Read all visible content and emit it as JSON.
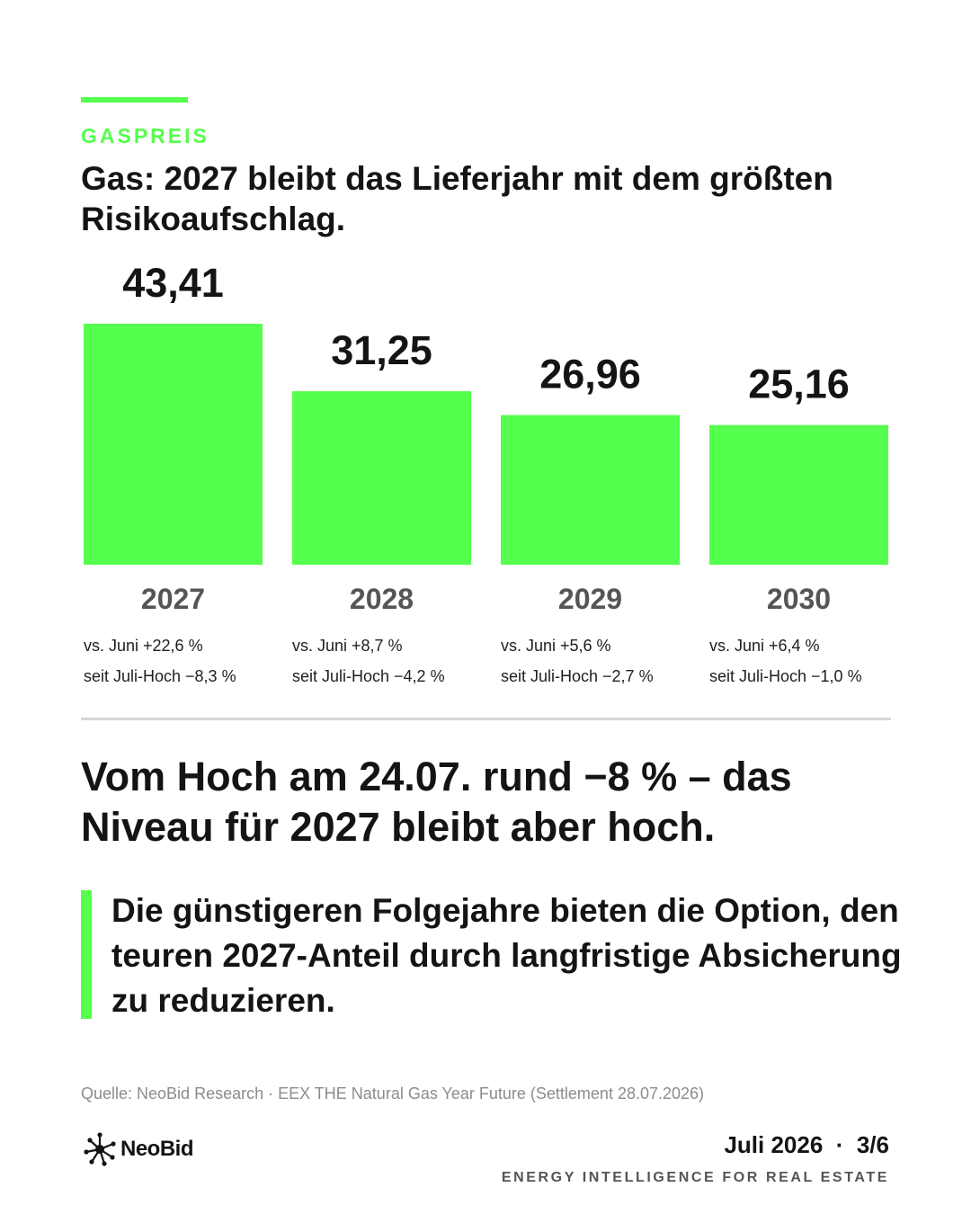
{
  "kicker": "GASPREIS",
  "title": "Gas: 2027 bleibt das Lieferjahr mit dem größten Risikoaufschlag.",
  "chart_data": {
    "type": "bar",
    "categories": [
      "2027",
      "2028",
      "2029",
      "2030"
    ],
    "values": [
      43.41,
      31.25,
      26.96,
      25.16
    ],
    "value_labels": [
      "43,41",
      "31,25",
      "26,96",
      "25,16"
    ],
    "ylim": [
      0,
      43.41
    ],
    "grid": false,
    "notes": [
      [
        "vs. Juni +22,6 %",
        "seit Juli-Hoch −8,3 %"
      ],
      [
        "vs. Juni +8,7 %",
        "seit Juli-Hoch −4,2 %"
      ],
      [
        "vs. Juni +5,6 %",
        "seit Juli-Hoch −2,7 %"
      ],
      [
        "vs. Juni +6,4 %",
        "seit Juli-Hoch −1,0 %"
      ]
    ],
    "bar_color": "#55ff4d"
  },
  "headline": "Vom Hoch am 24.07. rund −8 % – das Niveau für 2027 bleibt aber hoch.",
  "quote": "Die günstigeren Folgejahre bieten die Option, den teuren 2027-Anteil durch langfristige Absicherung zu reduzieren.",
  "source": "Quelle: NeoBid Research · EEX THE Natural Gas Year Future (Settlement 28.07.2026)",
  "footer": {
    "logo_text": "NeoBid",
    "logo_icon": "network-node-icon",
    "page_info": "Juli 2026  ·  3/6",
    "tagline": "ENERGY INTELLIGENCE FOR REAL ESTATE"
  },
  "colors": {
    "accent": "#55ff4d",
    "text": "#141414",
    "muted": "#555555"
  }
}
